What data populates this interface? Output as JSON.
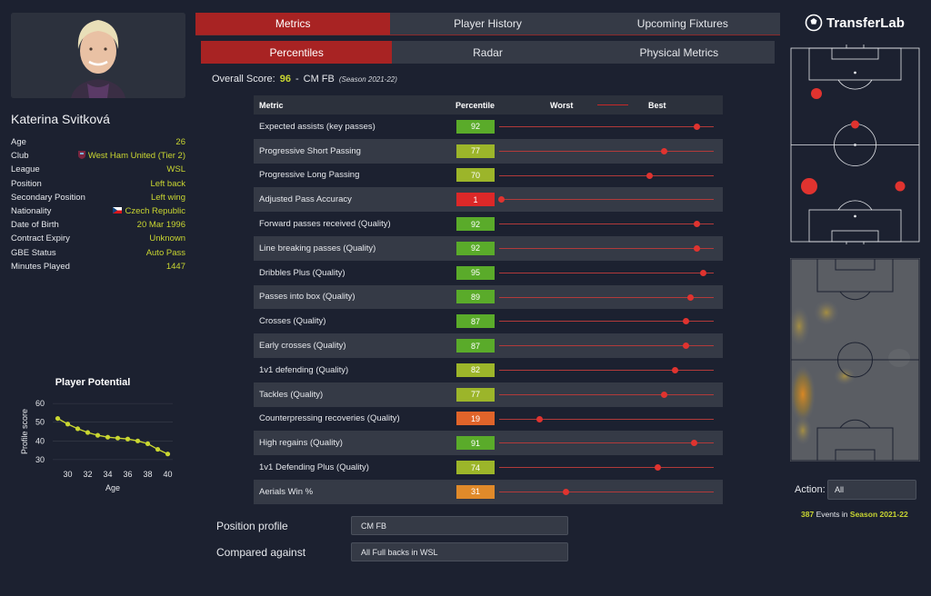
{
  "player": {
    "name": "Katerina Svitková",
    "info": [
      {
        "label": "Age",
        "value": "26"
      },
      {
        "label": "Club",
        "value": "West Ham United (Tier 2)",
        "icon": "club-crest-icon"
      },
      {
        "label": "League",
        "value": "WSL"
      },
      {
        "label": "Position",
        "value": "Left back"
      },
      {
        "label": "Secondary Position",
        "value": "Left wing"
      },
      {
        "label": "Nationality",
        "value": "Czech Republic",
        "icon": "czech-flag-icon"
      },
      {
        "label": "Date of Birth",
        "value": "20 Mar 1996"
      },
      {
        "label": "Contract Expiry",
        "value": "Unknown"
      },
      {
        "label": "GBE Status",
        "value": "Auto Pass"
      },
      {
        "label": "Minutes Played",
        "value": "1447"
      }
    ]
  },
  "chart_data": {
    "type": "line",
    "title": "Player Potential",
    "xlabel": "Age",
    "ylabel": "Profile score",
    "x": [
      29,
      30,
      31,
      32,
      33,
      34,
      35,
      36,
      37,
      38,
      39,
      40
    ],
    "values": [
      52,
      49,
      46.5,
      44.5,
      43,
      42,
      41.5,
      41,
      40,
      38.5,
      35.5,
      33
    ],
    "xticks": [
      "30",
      "32",
      "34",
      "36",
      "38",
      "40"
    ],
    "yticks": [
      "30",
      "40",
      "50",
      "60"
    ],
    "xlim": [
      28.5,
      40.5
    ],
    "ylim": [
      28,
      62
    ],
    "grid": true,
    "line_color": "#c9d631"
  },
  "tabs": {
    "top": [
      "Metrics",
      "Player History",
      "Upcoming Fixtures"
    ],
    "sub": [
      "Percentiles",
      "Radar",
      "Physical Metrics"
    ]
  },
  "overall": {
    "label": "Overall Score:",
    "score": "96",
    "sep": "-",
    "role": "CM FB",
    "season": "(Season 2021-22)"
  },
  "metrics_table": {
    "headers": {
      "metric": "Metric",
      "percentile": "Percentile",
      "worst": "Worst",
      "best": "Best"
    },
    "rows": [
      {
        "metric": "Expected assists (key passes)",
        "percentile": 92
      },
      {
        "metric": "Progressive Short Passing",
        "percentile": 77
      },
      {
        "metric": "Progressive Long Passing",
        "percentile": 70
      },
      {
        "metric": "Adjusted Pass Accuracy",
        "percentile": 1
      },
      {
        "metric": "Forward passes received (Quality)",
        "percentile": 92
      },
      {
        "metric": "Line breaking passes (Quality)",
        "percentile": 92
      },
      {
        "metric": "Dribbles Plus (Quality)",
        "percentile": 95
      },
      {
        "metric": "Passes into box (Quality)",
        "percentile": 89
      },
      {
        "metric": "Crosses (Quality)",
        "percentile": 87
      },
      {
        "metric": "Early crosses (Quality)",
        "percentile": 87
      },
      {
        "metric": "1v1 defending (Quality)",
        "percentile": 82
      },
      {
        "metric": "Tackles (Quality)",
        "percentile": 77
      },
      {
        "metric": "Counterpressing recoveries (Quality)",
        "percentile": 19
      },
      {
        "metric": "High regains (Quality)",
        "percentile": 91
      },
      {
        "metric": "1v1 Defending Plus (Quality)",
        "percentile": 74
      },
      {
        "metric": "Aerials Win %",
        "percentile": 31
      }
    ]
  },
  "profile": {
    "position_label": "Position profile",
    "position_value": "CM FB",
    "compared_label": "Compared against",
    "compared_value": "All Full backs in WSL"
  },
  "brand": {
    "name": "TransferLab"
  },
  "action": {
    "label": "Action:",
    "value": "All"
  },
  "events": {
    "count": "387",
    "text": "Events in",
    "season": "Season 2021-22"
  },
  "colors": {
    "accent": "#a82323",
    "highlight": "#c9d631",
    "dot": "#e0332f"
  }
}
